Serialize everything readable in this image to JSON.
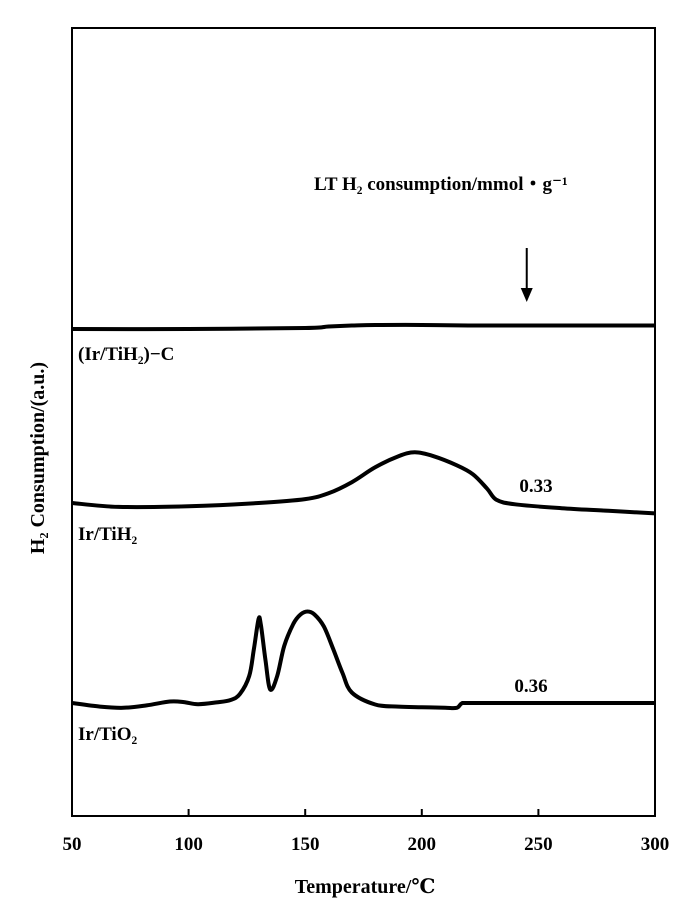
{
  "chart_data": {
    "type": "line",
    "xlabel": "Temperature/℃",
    "ylabel": "H₂ Consumption/(a.u.)",
    "xlim": [
      50,
      300
    ],
    "x_ticks": [
      "50",
      "100",
      "150",
      "200",
      "250",
      "300"
    ],
    "annotation": "LT H₂ consumption/mmol・g⁻¹",
    "arrow_x": 245,
    "grid": false,
    "series": [
      {
        "name": "(Ir/TiH₂)−C",
        "value_label": "",
        "x": [
          50,
          100,
          150,
          160,
          170,
          180,
          200,
          220,
          250,
          280,
          300
        ],
        "y": [
          0.0,
          0.0,
          0.02,
          0.05,
          0.07,
          0.08,
          0.08,
          0.07,
          0.07,
          0.07,
          0.07
        ]
      },
      {
        "name": "Ir/TiH₂",
        "value_label": "0.33",
        "x": [
          50,
          70,
          100,
          130,
          150,
          160,
          170,
          180,
          190,
          197,
          205,
          215,
          222,
          228,
          232,
          240,
          260,
          280,
          300
        ],
        "y": [
          0.0,
          -0.06,
          -0.05,
          0.0,
          0.06,
          0.15,
          0.32,
          0.55,
          0.72,
          0.78,
          0.72,
          0.58,
          0.44,
          0.22,
          0.05,
          -0.02,
          -0.08,
          -0.12,
          -0.16
        ]
      },
      {
        "name": "Ir/TiO₂",
        "value_label": "0.36",
        "x": [
          50,
          62,
          72,
          82,
          92,
          98,
          104,
          112,
          118,
          122,
          126,
          128,
          130,
          131,
          133,
          135,
          138,
          141,
          145,
          148,
          151,
          154,
          158,
          162,
          166,
          170,
          180,
          190,
          200,
          210,
          215,
          217,
          220,
          240,
          260,
          280,
          300
        ],
        "y": [
          0.0,
          -0.12,
          -0.16,
          -0.08,
          0.05,
          0.03,
          -0.04,
          0.02,
          0.1,
          0.3,
          0.9,
          1.8,
          2.8,
          2.6,
          1.4,
          0.45,
          0.9,
          1.9,
          2.65,
          2.95,
          3.05,
          2.95,
          2.55,
          1.8,
          1.0,
          0.35,
          -0.05,
          -0.12,
          -0.14,
          -0.16,
          -0.16,
          -0.02,
          0.0,
          0.0,
          0.0,
          0.0,
          0.0
        ]
      }
    ]
  }
}
